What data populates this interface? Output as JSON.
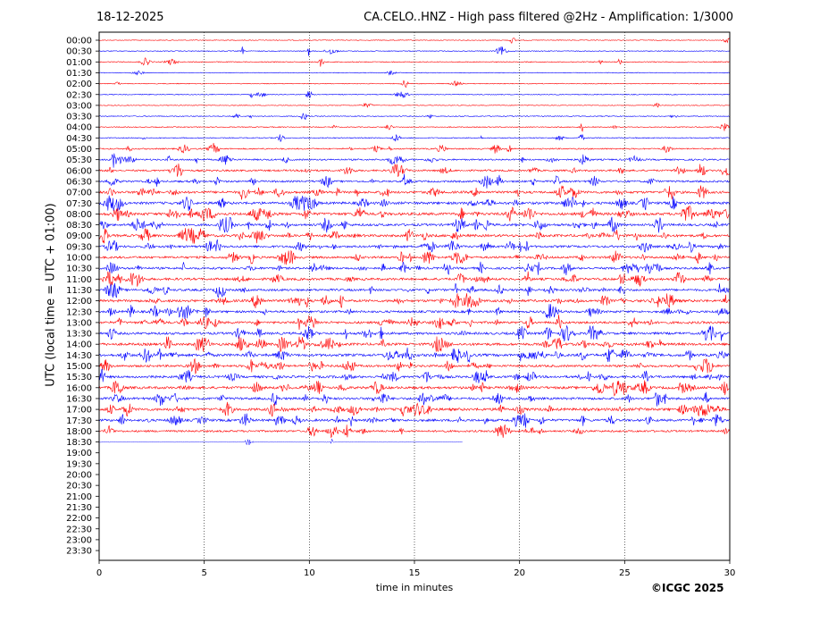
{
  "header": {
    "date": "18-12-2025",
    "title": "CA.CELO..HNZ - High pass filtered @2Hz - Amplification: 1/3000"
  },
  "credit": "©ICGC 2025",
  "chart_data": {
    "type": "line",
    "subtype": "helicorder",
    "xlabel": "time in minutes",
    "ylabel": "UTC (local time = UTC + 01:00)",
    "xlim": [
      0,
      30
    ],
    "x_ticks": [
      0,
      5,
      10,
      15,
      20,
      25,
      30
    ],
    "vertical_gridlines": [
      5,
      10,
      15,
      20,
      25
    ],
    "grid": "vertical dotted",
    "colors": {
      "even_rows": "#ff0000",
      "odd_rows": "#0000ff"
    },
    "row_labels": [
      "00:00",
      "00:30",
      "01:00",
      "01:30",
      "02:00",
      "02:30",
      "03:00",
      "03:30",
      "04:00",
      "04:30",
      "05:00",
      "05:30",
      "06:00",
      "06:30",
      "07:00",
      "07:30",
      "08:00",
      "08:30",
      "09:00",
      "09:30",
      "10:00",
      "10:30",
      "11:00",
      "11:30",
      "12:00",
      "12:30",
      "13:00",
      "13:30",
      "14:00",
      "14:30",
      "15:00",
      "15:30",
      "16:00",
      "16:30",
      "17:00",
      "17:30",
      "18:00",
      "18:30",
      "19:00",
      "19:30",
      "20:00",
      "20:30",
      "21:00",
      "21:30",
      "22:00",
      "22:30",
      "23:00",
      "23:30"
    ],
    "row_activity": [
      0.05,
      0.1,
      0.12,
      0.05,
      0.08,
      0.1,
      0.05,
      0.12,
      0.12,
      0.15,
      0.25,
      0.35,
      0.4,
      0.45,
      0.6,
      0.65,
      0.7,
      0.6,
      0.65,
      0.55,
      0.55,
      0.55,
      0.6,
      0.55,
      0.65,
      0.55,
      0.6,
      0.6,
      0.65,
      0.7,
      0.55,
      0.6,
      0.65,
      0.6,
      0.7,
      0.6,
      0.45,
      0.05
    ],
    "last_row_end_minute": 17.3
  }
}
